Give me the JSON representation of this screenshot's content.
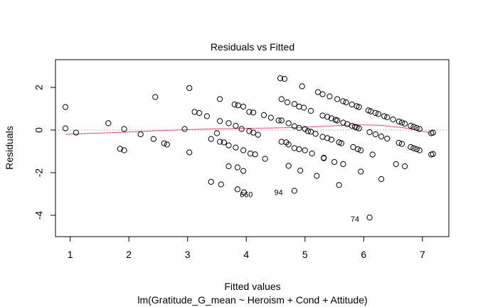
{
  "chart_data": {
    "type": "scatter",
    "title": "Residuals vs Fitted",
    "xlabel": "Fitted values",
    "subtitle": "lm(Gratitude_G_mean ~ Heroism + Cond + Attitude)",
    "ylabel": "Residuals",
    "xlim": [
      0.75,
      7.45
    ],
    "ylim": [
      -5.0,
      3.3
    ],
    "xticks": [
      "1",
      "2",
      "3",
      "4",
      "5",
      "6",
      "7"
    ],
    "yticks": [
      "-4",
      "-2",
      "0",
      "2"
    ],
    "zero_line": true,
    "grid": false,
    "colors": {
      "points": "#000000",
      "smoother": "#df536b",
      "zero_line": "#a0a0a0"
    },
    "points": [
      [
        0.92,
        1.08
      ],
      [
        0.92,
        0.08
      ],
      [
        1.1,
        -0.12
      ],
      [
        1.65,
        0.32
      ],
      [
        1.85,
        -0.88
      ],
      [
        1.92,
        -0.95
      ],
      [
        1.92,
        0.05
      ],
      [
        2.2,
        -0.2
      ],
      [
        2.42,
        -0.42
      ],
      [
        2.45,
        1.55
      ],
      [
        2.6,
        -0.62
      ],
      [
        2.65,
        -0.68
      ],
      [
        2.95,
        0.05
      ],
      [
        3.03,
        1.97
      ],
      [
        3.03,
        -1.05
      ],
      [
        3.12,
        0.85
      ],
      [
        3.2,
        0.8
      ],
      [
        3.33,
        0.65
      ],
      [
        3.4,
        -0.42
      ],
      [
        3.4,
        -2.43
      ],
      [
        3.5,
        -0.15
      ],
      [
        3.55,
        1.45
      ],
      [
        3.55,
        0.42
      ],
      [
        3.55,
        -0.55
      ],
      [
        3.57,
        -2.55
      ],
      [
        3.62,
        -0.58
      ],
      [
        3.7,
        0.32
      ],
      [
        3.7,
        -0.72
      ],
      [
        3.7,
        -1.7
      ],
      [
        3.8,
        1.2
      ],
      [
        3.82,
        0.2
      ],
      [
        3.82,
        -0.82
      ],
      [
        3.85,
        -1.75
      ],
      [
        3.85,
        -2.78
      ],
      [
        3.86,
        1.16
      ],
      [
        3.92,
        0.05
      ],
      [
        3.95,
        1.1
      ],
      [
        3.95,
        -0.95
      ],
      [
        3.95,
        -1.92
      ],
      [
        3.96,
        -2.92
      ],
      [
        4.05,
        0.85
      ],
      [
        4.05,
        -0.05
      ],
      [
        4.07,
        -1.1
      ],
      [
        4.12,
        0.82
      ],
      [
        4.12,
        -0.12
      ],
      [
        4.15,
        -1.14
      ],
      [
        4.2,
        -0.22
      ],
      [
        4.3,
        0.7
      ],
      [
        4.32,
        -1.35
      ],
      [
        4.42,
        0.58
      ],
      [
        4.55,
        0.45
      ],
      [
        4.58,
        2.43
      ],
      [
        4.6,
        0.45
      ],
      [
        4.6,
        1.45
      ],
      [
        4.6,
        -0.55
      ],
      [
        4.65,
        2.4
      ],
      [
        4.68,
        -0.58
      ],
      [
        4.7,
        1.3
      ],
      [
        4.72,
        0.32
      ],
      [
        4.72,
        -0.68
      ],
      [
        4.72,
        -1.68
      ],
      [
        4.82,
        1.22
      ],
      [
        4.82,
        0.18
      ],
      [
        4.82,
        -0.85
      ],
      [
        4.82,
        -2.85
      ],
      [
        4.9,
        1.1
      ],
      [
        4.9,
        0.1
      ],
      [
        4.9,
        -0.9
      ],
      [
        4.92,
        -1.9
      ],
      [
        4.95,
        2.05
      ],
      [
        4.98,
        1.05
      ],
      [
        5.0,
        0.05
      ],
      [
        5.0,
        -0.95
      ],
      [
        5.05,
        -0.05
      ],
      [
        5.1,
        0.9
      ],
      [
        5.1,
        -0.08
      ],
      [
        5.12,
        -1.1
      ],
      [
        5.18,
        -0.18
      ],
      [
        5.2,
        -2.15
      ],
      [
        5.22,
        1.78
      ],
      [
        5.3,
        1.68
      ],
      [
        5.3,
        0.68
      ],
      [
        5.3,
        -0.32
      ],
      [
        5.32,
        -1.32
      ],
      [
        5.32,
        -1.3
      ],
      [
        5.38,
        0.62
      ],
      [
        5.38,
        -0.38
      ],
      [
        5.42,
        1.58
      ],
      [
        5.45,
        0.55
      ],
      [
        5.45,
        -0.45
      ],
      [
        5.5,
        -1.5
      ],
      [
        5.52,
        0.48
      ],
      [
        5.55,
        1.45
      ],
      [
        5.55,
        0.45
      ],
      [
        5.58,
        -0.58
      ],
      [
        5.58,
        -2.58
      ],
      [
        5.62,
        -0.62
      ],
      [
        5.65,
        1.35
      ],
      [
        5.65,
        0.35
      ],
      [
        5.65,
        -1.6
      ],
      [
        5.7,
        1.3
      ],
      [
        5.72,
        0.28
      ],
      [
        5.8,
        1.2
      ],
      [
        5.8,
        0.2
      ],
      [
        5.82,
        -0.8
      ],
      [
        5.85,
        0.15
      ],
      [
        5.88,
        1.12
      ],
      [
        5.88,
        0.12
      ],
      [
        5.9,
        -0.9
      ],
      [
        5.92,
        1.08
      ],
      [
        5.92,
        0.08
      ],
      [
        5.95,
        -0.95
      ],
      [
        5.95,
        -1.95
      ],
      [
        6.08,
        0.92
      ],
      [
        6.1,
        -0.1
      ],
      [
        6.1,
        -4.1
      ],
      [
        6.12,
        0.88
      ],
      [
        6.15,
        -1.15
      ],
      [
        6.2,
        0.8
      ],
      [
        6.2,
        -0.2
      ],
      [
        6.25,
        0.75
      ],
      [
        6.3,
        -0.3
      ],
      [
        6.3,
        -2.3
      ],
      [
        6.35,
        0.65
      ],
      [
        6.4,
        0.6
      ],
      [
        6.4,
        -0.4
      ],
      [
        6.5,
        0.5
      ],
      [
        6.55,
        -1.6
      ],
      [
        6.6,
        0.4
      ],
      [
        6.6,
        -0.6
      ],
      [
        6.65,
        0.35
      ],
      [
        6.65,
        -0.65
      ],
      [
        6.7,
        0.3
      ],
      [
        6.7,
        -1.7
      ],
      [
        6.8,
        0.2
      ],
      [
        6.8,
        -0.8
      ],
      [
        6.85,
        0.15
      ],
      [
        6.85,
        -0.85
      ],
      [
        6.9,
        0.1
      ],
      [
        6.9,
        -0.9
      ],
      [
        6.95,
        0.05
      ],
      [
        6.95,
        -0.95
      ],
      [
        7.15,
        -0.15
      ],
      [
        7.15,
        -1.15
      ],
      [
        7.18,
        -0.12
      ],
      [
        7.18,
        -1.12
      ]
    ],
    "smoother": [
      [
        0.92,
        -0.2
      ],
      [
        1.5,
        -0.14
      ],
      [
        2.0,
        -0.09
      ],
      [
        2.5,
        -0.03
      ],
      [
        3.0,
        0.02
      ],
      [
        3.5,
        0.06
      ],
      [
        4.0,
        0.08
      ],
      [
        4.5,
        0.1
      ],
      [
        5.0,
        0.13
      ],
      [
        5.5,
        0.2
      ],
      [
        5.9,
        0.25
      ],
      [
        6.3,
        0.22
      ],
      [
        6.7,
        0.1
      ],
      [
        7.17,
        -0.15
      ]
    ],
    "annotations": [
      {
        "text": "660",
        "x": 4.0,
        "y": -3.05
      },
      {
        "text": "94",
        "x": 4.55,
        "y": -2.95
      },
      {
        "text": "74",
        "x": 5.85,
        "y": -4.2
      }
    ]
  }
}
